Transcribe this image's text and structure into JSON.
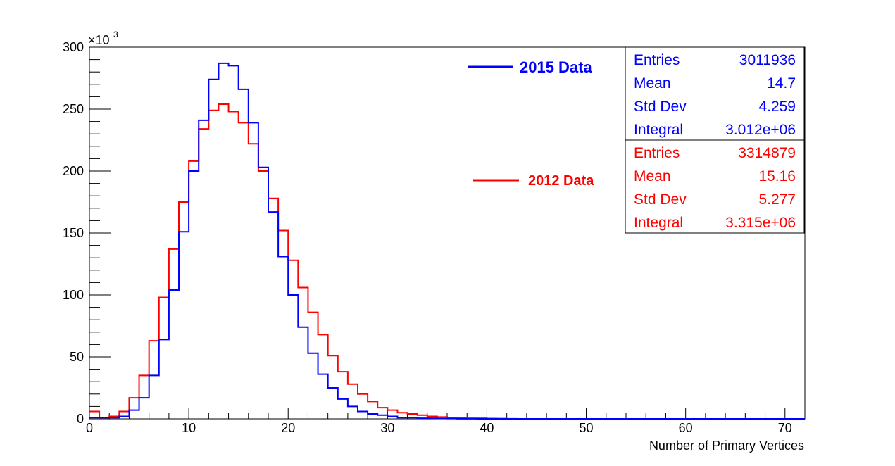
{
  "chart_data": {
    "type": "histogram",
    "xlabel": "Number of Primary Vertices",
    "ylabel": "",
    "y_multiplier_label": "×10",
    "y_multiplier_exponent": "3",
    "xlim": [
      0,
      72
    ],
    "ylim": [
      0,
      300
    ],
    "x_ticks": [
      "0",
      "10",
      "20",
      "30",
      "40",
      "50",
      "60",
      "70"
    ],
    "y_ticks": [
      "0",
      "50",
      "100",
      "150",
      "200",
      "250",
      "300"
    ],
    "bin_width": 1,
    "series": [
      {
        "name": "2015 Data",
        "color": "#0000ff",
        "values": [
          1,
          1,
          1,
          2,
          7,
          17,
          35,
          64,
          104,
          151,
          200,
          241,
          274,
          287,
          285,
          266,
          239,
          203,
          167,
          131,
          100,
          74,
          53,
          36,
          25,
          16,
          10,
          6,
          4,
          3,
          2,
          1,
          1,
          0.5,
          0.5,
          0.3,
          0.2,
          0.1,
          0.1,
          0,
          0,
          0,
          0,
          0,
          0,
          0,
          0,
          0,
          0,
          0,
          0,
          0,
          0,
          0,
          0,
          0,
          0,
          0,
          0,
          0,
          0,
          0,
          0,
          0,
          0,
          0,
          0,
          0,
          0,
          0,
          0,
          0
        ]
      },
      {
        "name": "2012 Data",
        "color": "#ff0000",
        "values": [
          6,
          1,
          2,
          6,
          17,
          35,
          63,
          98,
          137,
          175,
          208,
          234,
          249,
          254,
          248,
          239,
          222,
          200,
          178,
          152,
          128,
          106,
          86,
          68,
          51,
          38,
          28,
          20,
          14,
          9,
          7,
          5,
          4,
          3,
          2,
          1.5,
          1,
          1,
          0.5,
          0.5,
          0.3,
          0.2,
          0.1,
          0,
          0,
          0,
          0,
          0,
          0,
          0,
          0,
          0,
          0,
          0,
          0,
          0,
          0,
          0,
          0,
          0,
          0,
          0,
          0,
          0,
          0,
          0,
          0,
          0,
          0,
          0,
          0,
          0
        ]
      }
    ]
  },
  "legend": [
    {
      "label": "2015 Data",
      "color": "#0000ff"
    },
    {
      "label": "2012 Data",
      "color": "#ff0000"
    }
  ],
  "stats": [
    {
      "color": "#0000ff",
      "rows": [
        {
          "label": "Entries",
          "value": "3011936"
        },
        {
          "label": "Mean",
          "value": "14.7"
        },
        {
          "label": "Std Dev",
          "value": "4.259"
        },
        {
          "label": "Integral",
          "value": "3.012e+06"
        }
      ]
    },
    {
      "color": "#ff0000",
      "rows": [
        {
          "label": "Entries",
          "value": "3314879"
        },
        {
          "label": "Mean",
          "value": "15.16"
        },
        {
          "label": "Std Dev",
          "value": "5.277"
        },
        {
          "label": "Integral",
          "value": "3.315e+06"
        }
      ]
    }
  ]
}
